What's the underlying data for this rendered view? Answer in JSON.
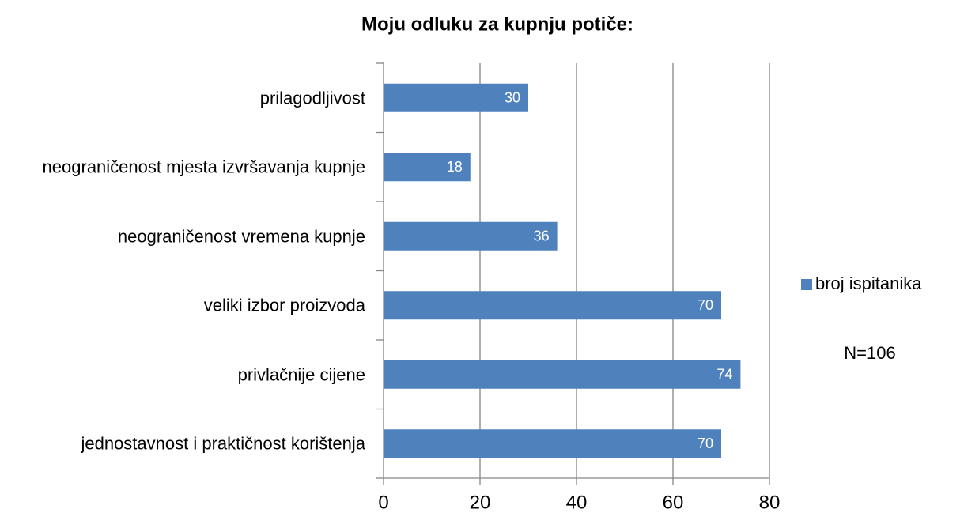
{
  "chart_data": {
    "type": "bar",
    "orientation": "horizontal",
    "title": "Moju odluku za kupnju potiče:",
    "categories": [
      "prilagodljivost",
      "neograničenost mjesta izvršavanja kupnje",
      "neograničenost vremena kupnje",
      "veliki izbor proizvoda",
      "privlačnije cijene",
      "jednostavnost i praktičnost korištenja"
    ],
    "series": [
      {
        "name": "broj ispitanika",
        "color": "#4f81bd",
        "values": [
          30,
          18,
          36,
          70,
          74,
          70
        ]
      }
    ],
    "xlim": [
      0,
      80
    ],
    "xticks": [
      0,
      20,
      40,
      60,
      80
    ],
    "grid": true,
    "legend": "right",
    "annotation": "N=106"
  }
}
